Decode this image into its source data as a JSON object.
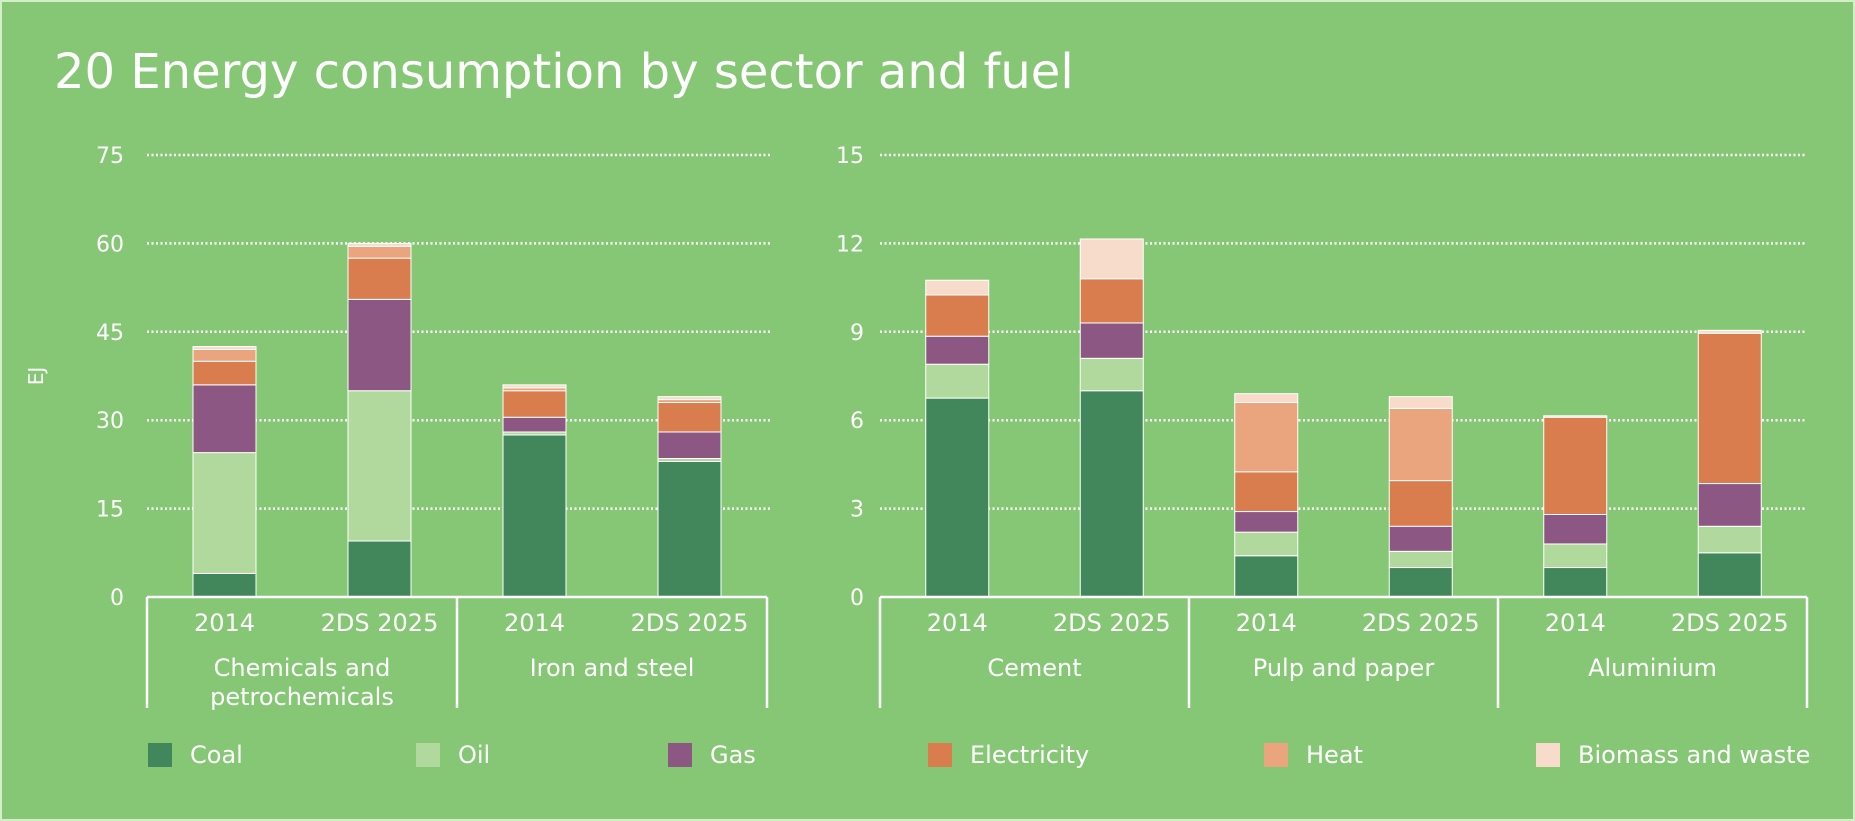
{
  "title": "20 Energy consumption by sector and fuel",
  "colors": {
    "background": "#86c775",
    "gridline": "#ffffff",
    "text": "#ffffff"
  },
  "legend": [
    {
      "name": "Coal",
      "color": "#42875b"
    },
    {
      "name": "Oil",
      "color": "#b2d99d"
    },
    {
      "name": "Gas",
      "color": "#8c5883"
    },
    {
      "name": "Electricity",
      "color": "#d97d4f"
    },
    {
      "name": "Heat",
      "color": "#eaa57e"
    },
    {
      "name": "Biomass and waste",
      "color": "#f7dccc"
    }
  ],
  "chart_data": [
    {
      "type": "bar",
      "stacked": true,
      "ylabel": "EJ",
      "ylim": [
        0,
        75
      ],
      "yticks": [
        0,
        15,
        30,
        45,
        60,
        75
      ],
      "grid": true,
      "groups": [
        {
          "label_lines": [
            "Chemicals and",
            "petrochemicals"
          ],
          "categories": [
            "2014",
            "2DS 2025"
          ]
        },
        {
          "label_lines": [
            "Iron and steel"
          ],
          "categories": [
            "2014",
            "2DS 2025"
          ]
        }
      ],
      "series": [
        {
          "name": "Coal",
          "values": [
            4,
            9.5,
            27.5,
            23
          ]
        },
        {
          "name": "Oil",
          "values": [
            20.5,
            25.5,
            0.5,
            0.5
          ]
        },
        {
          "name": "Gas",
          "values": [
            11.5,
            15.5,
            2.5,
            4.5
          ]
        },
        {
          "name": "Electricity",
          "values": [
            4,
            7,
            4.5,
            5
          ]
        },
        {
          "name": "Heat",
          "values": [
            2,
            2,
            0.5,
            0.5
          ]
        },
        {
          "name": "Biomass and waste",
          "values": [
            0.5,
            0.5,
            0.5,
            0.5
          ]
        }
      ]
    },
    {
      "type": "bar",
      "stacked": true,
      "ylabel": "",
      "ylim": [
        0,
        15
      ],
      "yticks": [
        0,
        3,
        6,
        9,
        12,
        15
      ],
      "grid": true,
      "groups": [
        {
          "label_lines": [
            "Cement"
          ],
          "categories": [
            "2014",
            "2DS 2025"
          ]
        },
        {
          "label_lines": [
            "Pulp and paper"
          ],
          "categories": [
            "2014",
            "2DS 2025"
          ]
        },
        {
          "label_lines": [
            "Aluminium"
          ],
          "categories": [
            "2014",
            "2DS 2025"
          ]
        }
      ],
      "series": [
        {
          "name": "Coal",
          "values": [
            6.75,
            7.0,
            1.4,
            1.0,
            1.0,
            1.5
          ]
        },
        {
          "name": "Oil",
          "values": [
            1.15,
            1.1,
            0.8,
            0.55,
            0.8,
            0.9
          ]
        },
        {
          "name": "Gas",
          "values": [
            0.95,
            1.2,
            0.7,
            0.85,
            1.0,
            1.45
          ]
        },
        {
          "name": "Electricity",
          "values": [
            1.4,
            1.5,
            1.35,
            1.55,
            3.3,
            5.1
          ]
        },
        {
          "name": "Heat",
          "values": [
            0.0,
            0.0,
            2.35,
            2.45,
            0.0,
            0.0
          ]
        },
        {
          "name": "Biomass and waste",
          "values": [
            0.5,
            1.35,
            0.3,
            0.4,
            0.05,
            0.1
          ]
        }
      ]
    }
  ]
}
